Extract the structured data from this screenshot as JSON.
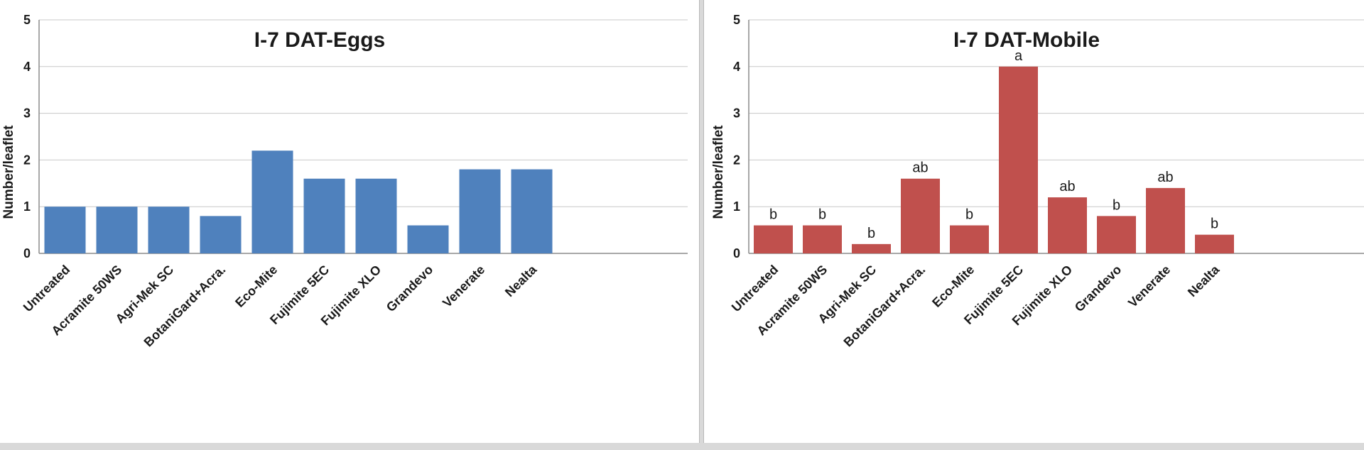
{
  "chart_data": [
    {
      "type": "bar",
      "title": "I-7 DAT-Eggs",
      "xlabel": "",
      "ylabel": "Number/leaflet",
      "ylim": [
        0,
        5
      ],
      "yticks": [
        0,
        1,
        2,
        3,
        4,
        5
      ],
      "grid": true,
      "categories": [
        "Untreated",
        "Acramite 50WS",
        "Agri-Mek SC",
        "BotaniGard+Acra.",
        "Eco-Mite",
        "Fujimite 5EC",
        "Fujimite XLO",
        "Grandevo",
        "Venerate",
        "Nealta"
      ],
      "values": [
        1.0,
        1.0,
        1.0,
        0.8,
        2.2,
        1.6,
        1.6,
        0.6,
        1.8,
        1.8
      ],
      "labels": [],
      "color": "#4f81bd"
    },
    {
      "type": "bar",
      "title": "I-7 DAT-Mobile",
      "xlabel": "",
      "ylabel": "Number/leaflet",
      "ylim": [
        0,
        5
      ],
      "yticks": [
        0,
        1,
        2,
        3,
        4,
        5
      ],
      "grid": true,
      "categories": [
        "Untreated",
        "Acramite 50WS",
        "Agri-Mek SC",
        "BotaniGard+Acra.",
        "Eco-Mite",
        "Fujimite 5EC",
        "Fujimite XLO",
        "Grandevo",
        "Venerate",
        "Nealta"
      ],
      "values": [
        0.6,
        0.6,
        0.2,
        1.6,
        0.6,
        4.0,
        1.2,
        0.8,
        1.4,
        0.4
      ],
      "labels": [
        "b",
        "b",
        "b",
        "ab",
        "b",
        "a",
        "ab",
        "b",
        "ab",
        "b"
      ],
      "color": "#c0504d"
    }
  ]
}
